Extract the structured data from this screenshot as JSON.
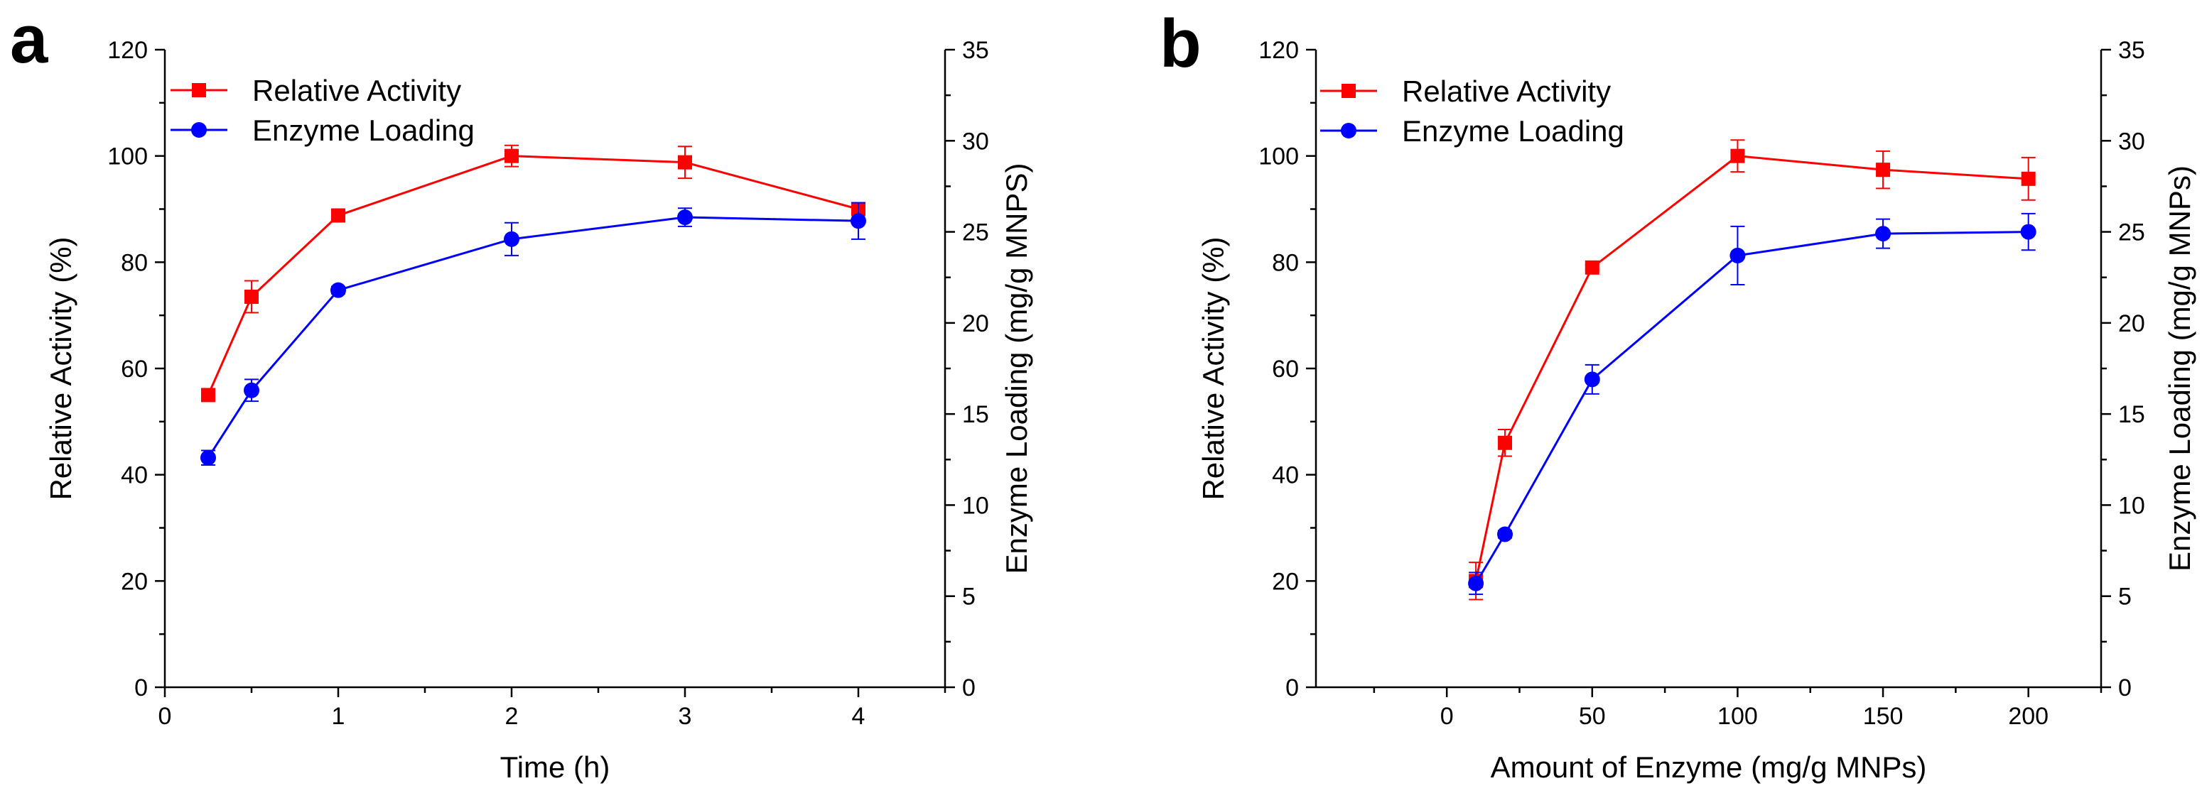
{
  "colors": {
    "red": "#ff0000",
    "blue": "#0000ff",
    "axis": "#000000"
  },
  "chart_data": [
    {
      "type": "line",
      "panel_label": "a",
      "xlabel": "Time (h)",
      "ylabel_left": "Relative Activity (%)",
      "ylabel_right": "Enzyme Loading (mg/g MNPS)",
      "xlim": [
        0,
        4.5
      ],
      "ylim_left": [
        0,
        120
      ],
      "ylim_right": [
        0,
        35
      ],
      "xticks": [
        0,
        1,
        2,
        3,
        4
      ],
      "yticks_left": [
        0,
        20,
        40,
        60,
        80,
        100,
        120
      ],
      "yticks_right": [
        0,
        5,
        10,
        15,
        20,
        25,
        30,
        35
      ],
      "legend_position": "top-left",
      "series": [
        {
          "name": "Relative Activity",
          "axis": "left",
          "marker": "square",
          "color": "#ff0000",
          "x": [
            0.25,
            0.5,
            1,
            2,
            3,
            4
          ],
          "y": [
            55,
            73.5,
            88.8,
            100,
            98.8,
            90
          ],
          "err": [
            0,
            3,
            1,
            2,
            3,
            1
          ]
        },
        {
          "name": "Enzyme Loading",
          "axis": "right",
          "marker": "circle",
          "color": "#0000ff",
          "x": [
            0.25,
            0.5,
            1,
            2,
            3,
            4
          ],
          "y": [
            12.6,
            16.3,
            21.8,
            24.6,
            25.8,
            25.6
          ],
          "err": [
            0.4,
            0.6,
            0.2,
            0.9,
            0.5,
            1.0
          ]
        }
      ]
    },
    {
      "type": "line",
      "panel_label": "b",
      "xlabel": "Amount of Enzyme (mg/g MNPs)",
      "ylabel_left": "Relative Activity (%)",
      "ylabel_right": "Enzyme Loading (mg/g MNPs)",
      "xlim": [
        -45,
        225
      ],
      "ylim_left": [
        0,
        120
      ],
      "ylim_right": [
        0,
        35
      ],
      "xticks": [
        0,
        50,
        100,
        150,
        200
      ],
      "yticks_left": [
        0,
        20,
        40,
        60,
        80,
        100,
        120
      ],
      "yticks_right": [
        0,
        5,
        10,
        15,
        20,
        25,
        30,
        35
      ],
      "legend_position": "top-left",
      "series": [
        {
          "name": "Relative Activity",
          "axis": "left",
          "marker": "square",
          "color": "#ff0000",
          "x": [
            10,
            20,
            50,
            100,
            150,
            200
          ],
          "y": [
            20,
            46,
            79,
            100,
            97.4,
            95.7
          ],
          "err": [
            3.5,
            2.5,
            0.5,
            3,
            3.5,
            4
          ]
        },
        {
          "name": "Enzyme Loading",
          "axis": "right",
          "marker": "circle",
          "color": "#0000ff",
          "x": [
            10,
            20,
            50,
            100,
            150,
            200
          ],
          "y": [
            5.7,
            8.4,
            16.9,
            23.7,
            24.9,
            25.0
          ],
          "err": [
            0.6,
            0.2,
            0.8,
            1.6,
            0.8,
            1.0
          ]
        }
      ]
    }
  ]
}
